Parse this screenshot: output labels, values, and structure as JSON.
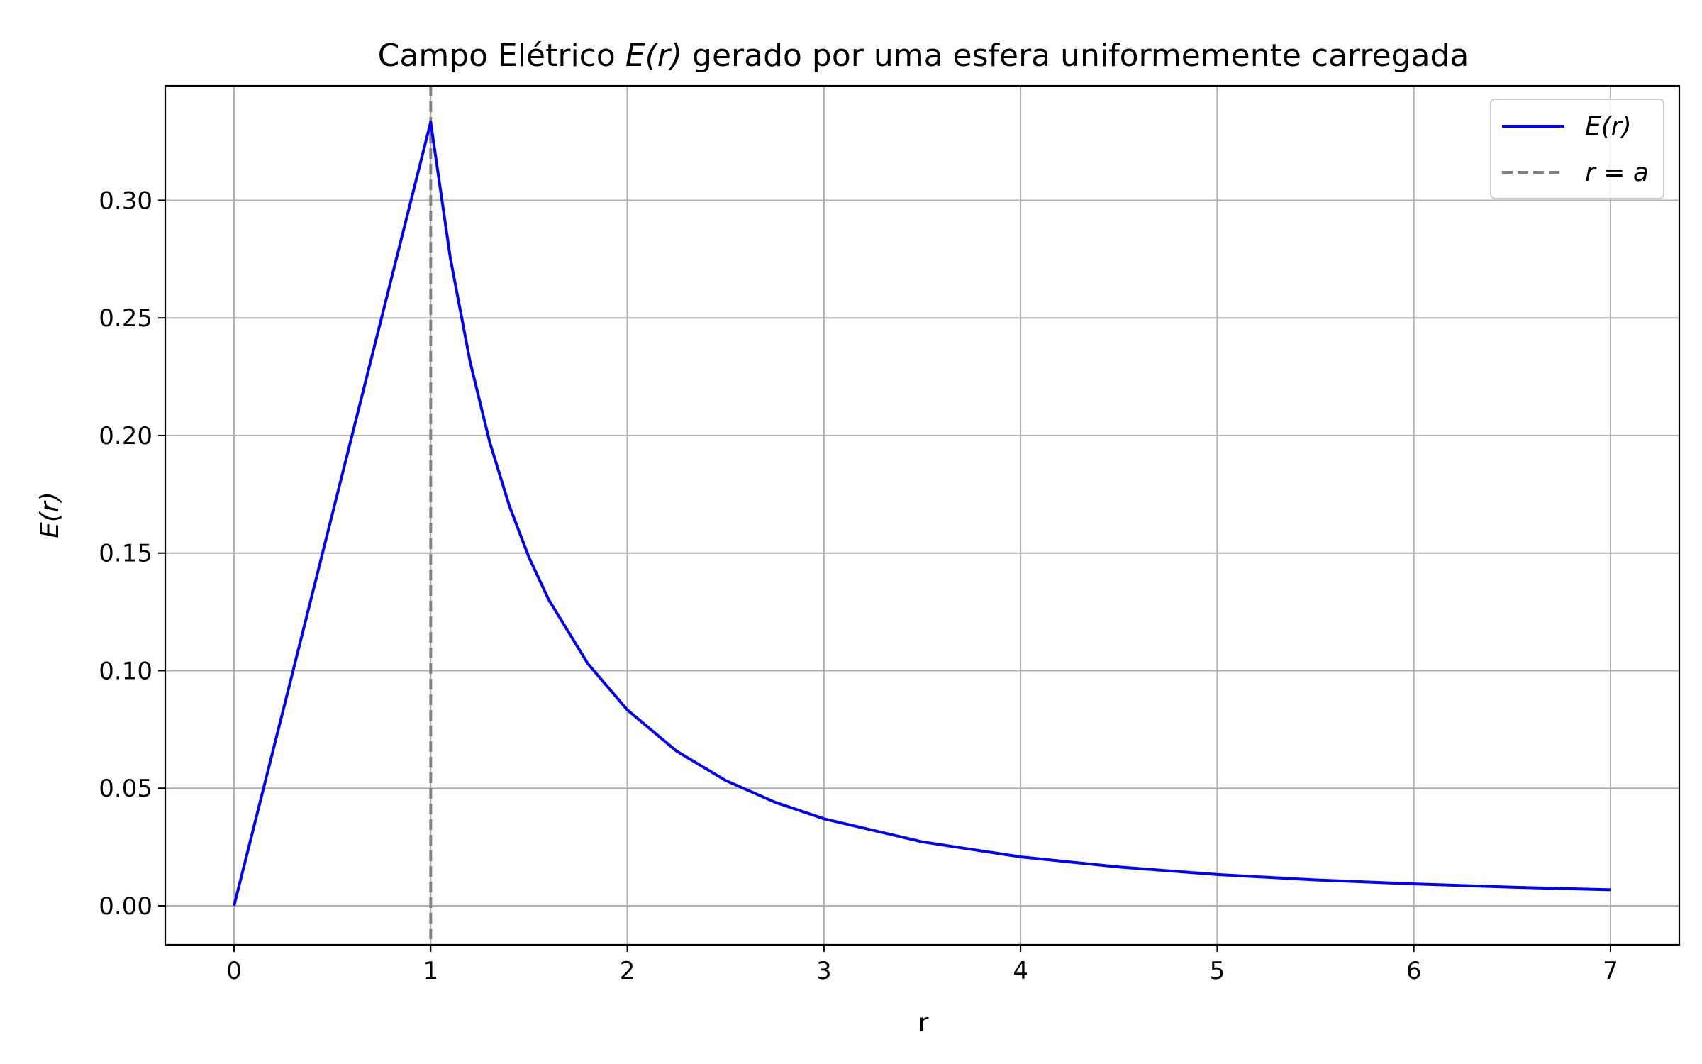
{
  "chart_data": {
    "type": "line",
    "title": "Campo Elétrico E(r) gerado por uma esfera uniformemente carregada",
    "title_prefix": "Campo Elétrico ",
    "title_math": "E(r)",
    "title_suffix": " gerado por uma esfera uniformemente carregada",
    "xlabel": "r",
    "ylabel": "E(r)",
    "xlim": [
      -0.35,
      7.35
    ],
    "ylim": [
      -0.0166,
      0.3487
    ],
    "xticks": [
      0,
      1,
      2,
      3,
      4,
      5,
      6,
      7
    ],
    "yticks": [
      0.0,
      0.05,
      0.1,
      0.15,
      0.2,
      0.25,
      0.3
    ],
    "ytick_labels": [
      "0.00",
      "0.05",
      "0.10",
      "0.15",
      "0.20",
      "0.25",
      "0.30"
    ],
    "grid": true,
    "legend_position": "top-right",
    "series": [
      {
        "name": "E(r)",
        "color": "#0000ff",
        "style": "solid",
        "x": [
          0,
          0.25,
          0.5,
          0.75,
          1.0,
          1.1,
          1.2,
          1.3,
          1.4,
          1.5,
          1.6,
          1.8,
          2.0,
          2.25,
          2.5,
          2.75,
          3.0,
          3.5,
          4.0,
          4.5,
          5.0,
          5.5,
          6.0,
          6.5,
          7.0
        ],
        "y": [
          0,
          0.0833,
          0.1667,
          0.25,
          0.3333,
          0.2755,
          0.2315,
          0.1972,
          0.1701,
          0.1481,
          0.1302,
          0.1029,
          0.0833,
          0.0658,
          0.0533,
          0.0441,
          0.037,
          0.0272,
          0.0208,
          0.0165,
          0.0133,
          0.011,
          0.0093,
          0.0079,
          0.0068
        ]
      },
      {
        "name": "r = a",
        "color": "#808080",
        "style": "dashed",
        "vline_x": 1
      }
    ]
  }
}
